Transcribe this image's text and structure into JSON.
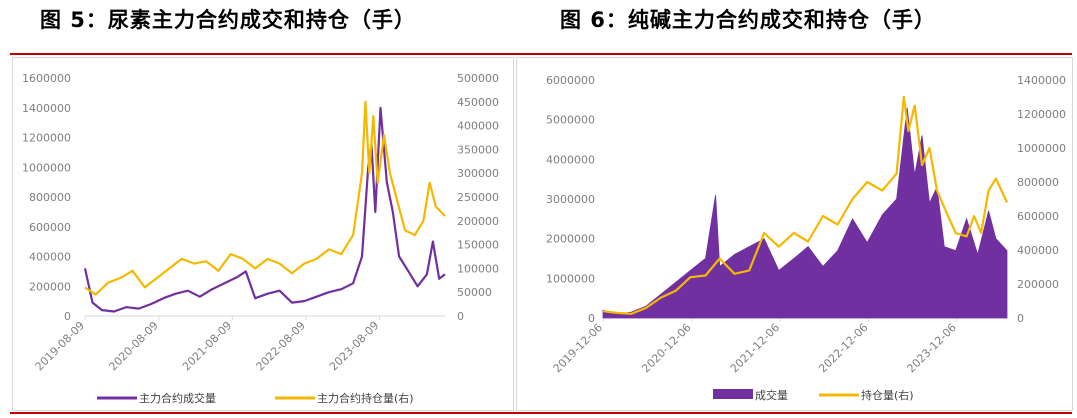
{
  "titles": {
    "left": "图 5：尿素主力合约成交和持仓（手）",
    "right": "图 6：纯碱主力合约成交和持仓（手）"
  },
  "colors": {
    "purple": "#7030a0",
    "gold": "#f5b800",
    "accent_red": "#c00000",
    "axis_text": "#7f7f7f"
  },
  "chart_data": [
    {
      "type": "line",
      "title": "",
      "x_ticks": [
        "2019-08-09",
        "2020-08-09",
        "2021-08-09",
        "2022-08-09",
        "2023-08-09"
      ],
      "x_range": [
        "2019-08-09",
        "2024-06-30"
      ],
      "y_left": {
        "ticks": [
          "0",
          "200000",
          "400000",
          "600000",
          "800000",
          "1000000",
          "1200000",
          "1400000",
          "1600000"
        ],
        "range": [
          0,
          1600000
        ]
      },
      "y_right": {
        "ticks": [
          "0",
          "50000",
          "100000",
          "150000",
          "200000",
          "250000",
          "300000",
          "350000",
          "400000",
          "450000",
          "500000"
        ],
        "range": [
          0,
          500000
        ]
      },
      "series": [
        {
          "name": "主力合约成交量",
          "axis": "left",
          "color": "#7030a0",
          "style": "line",
          "points": [
            [
              "2019-08-09",
              320000
            ],
            [
              "2019-09-15",
              90000
            ],
            [
              "2019-11-01",
              40000
            ],
            [
              "2020-01-01",
              30000
            ],
            [
              "2020-03-01",
              60000
            ],
            [
              "2020-05-01",
              50000
            ],
            [
              "2020-07-01",
              80000
            ],
            [
              "2020-09-01",
              120000
            ],
            [
              "2020-11-01",
              150000
            ],
            [
              "2021-01-01",
              170000
            ],
            [
              "2021-03-01",
              130000
            ],
            [
              "2021-05-01",
              180000
            ],
            [
              "2021-07-01",
              220000
            ],
            [
              "2021-09-01",
              260000
            ],
            [
              "2021-10-15",
              300000
            ],
            [
              "2021-12-01",
              120000
            ],
            [
              "2022-02-01",
              150000
            ],
            [
              "2022-04-01",
              170000
            ],
            [
              "2022-06-01",
              90000
            ],
            [
              "2022-08-01",
              100000
            ],
            [
              "2022-10-01",
              130000
            ],
            [
              "2022-12-01",
              160000
            ],
            [
              "2023-02-01",
              180000
            ],
            [
              "2023-04-01",
              220000
            ],
            [
              "2023-05-15",
              400000
            ],
            [
              "2023-06-15",
              1000000
            ],
            [
              "2023-07-01",
              1150000
            ],
            [
              "2023-07-20",
              700000
            ],
            [
              "2023-08-15",
              1400000
            ],
            [
              "2023-09-15",
              900000
            ],
            [
              "2023-10-15",
              700000
            ],
            [
              "2023-11-15",
              400000
            ],
            [
              "2024-01-01",
              300000
            ],
            [
              "2024-02-15",
              200000
            ],
            [
              "2024-04-01",
              280000
            ],
            [
              "2024-05-01",
              500000
            ],
            [
              "2024-06-01",
              250000
            ],
            [
              "2024-06-30",
              280000
            ]
          ]
        },
        {
          "name": "主力合约持仓量(右)",
          "axis": "right",
          "color": "#f5b800",
          "style": "line",
          "points": [
            [
              "2019-08-09",
              60000
            ],
            [
              "2019-10-01",
              45000
            ],
            [
              "2019-12-01",
              70000
            ],
            [
              "2020-02-01",
              80000
            ],
            [
              "2020-04-01",
              95000
            ],
            [
              "2020-06-01",
              60000
            ],
            [
              "2020-08-01",
              80000
            ],
            [
              "2020-10-01",
              100000
            ],
            [
              "2020-12-01",
              120000
            ],
            [
              "2021-02-01",
              110000
            ],
            [
              "2021-04-01",
              115000
            ],
            [
              "2021-06-01",
              95000
            ],
            [
              "2021-08-01",
              130000
            ],
            [
              "2021-10-01",
              120000
            ],
            [
              "2021-12-01",
              100000
            ],
            [
              "2022-02-01",
              120000
            ],
            [
              "2022-04-01",
              110000
            ],
            [
              "2022-06-01",
              90000
            ],
            [
              "2022-08-01",
              110000
            ],
            [
              "2022-10-01",
              120000
            ],
            [
              "2022-12-01",
              140000
            ],
            [
              "2023-02-01",
              130000
            ],
            [
              "2023-04-01",
              170000
            ],
            [
              "2023-05-15",
              300000
            ],
            [
              "2023-06-01",
              450000
            ],
            [
              "2023-06-20",
              300000
            ],
            [
              "2023-07-10",
              420000
            ],
            [
              "2023-08-01",
              280000
            ],
            [
              "2023-09-01",
              380000
            ],
            [
              "2023-10-01",
              300000
            ],
            [
              "2023-11-01",
              250000
            ],
            [
              "2023-12-15",
              180000
            ],
            [
              "2024-02-01",
              170000
            ],
            [
              "2024-03-15",
              200000
            ],
            [
              "2024-04-15",
              280000
            ],
            [
              "2024-05-15",
              230000
            ],
            [
              "2024-06-30",
              210000
            ]
          ]
        }
      ],
      "legend_position": "bottom",
      "grid": false
    },
    {
      "type": "area",
      "title": "",
      "x_ticks": [
        "2019-12-06",
        "2020-12-06",
        "2021-12-06",
        "2022-12-06",
        "2023-12-06"
      ],
      "x_range": [
        "2019-12-06",
        "2024-06-30"
      ],
      "y_left": {
        "ticks": [
          "0",
          "1000000",
          "2000000",
          "3000000",
          "4000000",
          "5000000",
          "6000000"
        ],
        "range": [
          0,
          6000000
        ]
      },
      "y_right": {
        "ticks": [
          "0",
          "200000",
          "400000",
          "600000",
          "800000",
          "1000000",
          "1200000",
          "1400000"
        ],
        "range": [
          0,
          1400000
        ]
      },
      "series": [
        {
          "name": "成交量",
          "axis": "left",
          "color": "#7030a0",
          "style": "area",
          "points": [
            [
              "2019-12-06",
              200000
            ],
            [
              "2020-02-01",
              100000
            ],
            [
              "2020-04-01",
              150000
            ],
            [
              "2020-06-01",
              300000
            ],
            [
              "2020-08-01",
              600000
            ],
            [
              "2020-10-01",
              900000
            ],
            [
              "2020-12-01",
              1200000
            ],
            [
              "2021-02-01",
              1500000
            ],
            [
              "2021-03-15",
              3100000
            ],
            [
              "2021-04-01",
              1300000
            ],
            [
              "2021-06-01",
              1600000
            ],
            [
              "2021-08-01",
              1800000
            ],
            [
              "2021-10-01",
              2000000
            ],
            [
              "2021-12-01",
              1200000
            ],
            [
              "2022-02-01",
              1500000
            ],
            [
              "2022-04-01",
              1800000
            ],
            [
              "2022-06-01",
              1300000
            ],
            [
              "2022-08-01",
              1700000
            ],
            [
              "2022-10-01",
              2500000
            ],
            [
              "2022-12-01",
              1900000
            ],
            [
              "2023-02-01",
              2600000
            ],
            [
              "2023-04-01",
              3000000
            ],
            [
              "2023-05-15",
              5300000
            ],
            [
              "2023-06-15",
              3600000
            ],
            [
              "2023-07-15",
              4600000
            ],
            [
              "2023-08-15",
              2900000
            ],
            [
              "2023-09-15",
              3300000
            ],
            [
              "2023-10-15",
              1800000
            ],
            [
              "2023-12-01",
              1700000
            ],
            [
              "2024-01-15",
              2500000
            ],
            [
              "2024-03-01",
              1600000
            ],
            [
              "2024-04-15",
              2700000
            ],
            [
              "2024-05-15",
              2000000
            ],
            [
              "2024-06-30",
              1700000
            ]
          ]
        },
        {
          "name": "持仓量(右)",
          "axis": "right",
          "color": "#f5b800",
          "style": "line",
          "points": [
            [
              "2019-12-06",
              40000
            ],
            [
              "2020-02-01",
              30000
            ],
            [
              "2020-04-01",
              25000
            ],
            [
              "2020-06-01",
              60000
            ],
            [
              "2020-08-01",
              120000
            ],
            [
              "2020-10-01",
              160000
            ],
            [
              "2020-12-01",
              240000
            ],
            [
              "2021-02-01",
              250000
            ],
            [
              "2021-04-01",
              350000
            ],
            [
              "2021-06-01",
              260000
            ],
            [
              "2021-08-01",
              280000
            ],
            [
              "2021-10-01",
              500000
            ],
            [
              "2021-12-01",
              420000
            ],
            [
              "2022-02-01",
              500000
            ],
            [
              "2022-04-01",
              450000
            ],
            [
              "2022-06-01",
              600000
            ],
            [
              "2022-08-01",
              550000
            ],
            [
              "2022-10-01",
              700000
            ],
            [
              "2022-12-01",
              800000
            ],
            [
              "2023-02-01",
              750000
            ],
            [
              "2023-04-01",
              850000
            ],
            [
              "2023-05-01",
              1300000
            ],
            [
              "2023-05-20",
              1100000
            ],
            [
              "2023-06-15",
              1250000
            ],
            [
              "2023-07-15",
              900000
            ],
            [
              "2023-08-15",
              1000000
            ],
            [
              "2023-09-15",
              750000
            ],
            [
              "2023-10-15",
              650000
            ],
            [
              "2023-12-01",
              500000
            ],
            [
              "2024-01-15",
              480000
            ],
            [
              "2024-02-15",
              600000
            ],
            [
              "2024-03-15",
              500000
            ],
            [
              "2024-04-15",
              750000
            ],
            [
              "2024-05-15",
              820000
            ],
            [
              "2024-06-30",
              680000
            ]
          ]
        }
      ],
      "legend_position": "bottom",
      "grid": false
    }
  ]
}
